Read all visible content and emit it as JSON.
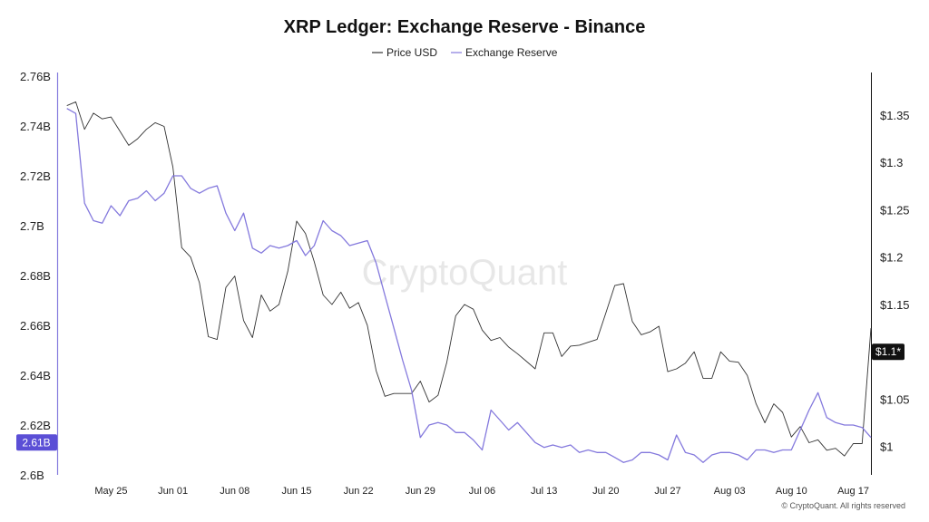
{
  "chart_data": {
    "type": "line",
    "title": "XRP Ledger: Exchange Reserve - Binance",
    "watermark": "CryptoQuant",
    "credit": "© CryptoQuant. All rights reserved",
    "x_tick_labels": [
      "May 25",
      "Jun 01",
      "Jun 08",
      "Jun 15",
      "Jun 22",
      "Jun 29",
      "Jul 06",
      "Jul 13",
      "Jul 20",
      "Jul 27",
      "Aug 03",
      "Aug 10",
      "Aug 17"
    ],
    "x_range": [
      "2023-05-19",
      "2023-08-19"
    ],
    "left_axis": {
      "ticks": [
        "2.6B",
        "2.62B",
        "2.64B",
        "2.66B",
        "2.68B",
        "2.7B",
        "2.72B",
        "2.74B",
        "2.76B"
      ],
      "tick_values": [
        2.6,
        2.62,
        2.64,
        2.66,
        2.68,
        2.7,
        2.72,
        2.74,
        2.76
      ],
      "range": [
        2.6,
        2.76
      ],
      "unit": "B",
      "current_label": "2.61B",
      "current_value": 2.613,
      "badge_color": "#5b4fd6"
    },
    "right_axis": {
      "ticks": [
        "$1",
        "$1.05",
        "$1.1",
        "$1.15",
        "$1.2",
        "$1.25",
        "$1.3",
        "$1.35"
      ],
      "tick_values": [
        1.0,
        1.05,
        1.1,
        1.15,
        1.2,
        1.25,
        1.3,
        1.35
      ],
      "range": [
        0.97,
        1.395
      ],
      "current_label": "$1.1*",
      "current_value": 1.1,
      "badge_color": "#111111"
    },
    "series": [
      {
        "name": "Price USD",
        "axis": "right",
        "color": "#333333",
        "x": [
          "2023-05-20",
          "2023-05-21",
          "2023-05-22",
          "2023-05-23",
          "2023-05-24",
          "2023-05-25",
          "2023-05-26",
          "2023-05-27",
          "2023-05-28",
          "2023-05-29",
          "2023-05-30",
          "2023-05-31",
          "2023-06-01",
          "2023-06-02",
          "2023-06-03",
          "2023-06-04",
          "2023-06-05",
          "2023-06-06",
          "2023-06-07",
          "2023-06-08",
          "2023-06-09",
          "2023-06-10",
          "2023-06-11",
          "2023-06-12",
          "2023-06-13",
          "2023-06-14",
          "2023-06-15",
          "2023-06-16",
          "2023-06-17",
          "2023-06-18",
          "2023-06-19",
          "2023-06-20",
          "2023-06-21",
          "2023-06-22",
          "2023-06-23",
          "2023-06-24",
          "2023-06-25",
          "2023-06-26",
          "2023-06-27",
          "2023-06-28",
          "2023-06-29",
          "2023-06-30",
          "2023-07-01",
          "2023-07-02",
          "2023-07-03",
          "2023-07-04",
          "2023-07-05",
          "2023-07-06",
          "2023-07-07",
          "2023-07-08",
          "2023-07-09",
          "2023-07-10",
          "2023-07-11",
          "2023-07-12",
          "2023-07-13",
          "2023-07-14",
          "2023-07-15",
          "2023-07-16",
          "2023-07-17",
          "2023-07-18",
          "2023-07-19",
          "2023-07-20",
          "2023-07-21",
          "2023-07-22",
          "2023-07-23",
          "2023-07-24",
          "2023-07-25",
          "2023-07-26",
          "2023-07-27",
          "2023-07-28",
          "2023-07-29",
          "2023-07-30",
          "2023-07-31",
          "2023-08-01",
          "2023-08-02",
          "2023-08-03",
          "2023-08-04",
          "2023-08-05",
          "2023-08-06",
          "2023-08-07",
          "2023-08-08",
          "2023-08-09",
          "2023-08-10",
          "2023-08-11",
          "2023-08-12",
          "2023-08-13",
          "2023-08-14",
          "2023-08-15",
          "2023-08-16",
          "2023-08-17",
          "2023-08-18",
          "2023-08-19"
        ],
        "values": [
          1.36,
          1.364,
          1.335,
          1.352,
          1.346,
          1.348,
          1.333,
          1.318,
          1.325,
          1.335,
          1.342,
          1.338,
          1.295,
          1.21,
          1.2,
          1.173,
          1.116,
          1.113,
          1.168,
          1.18,
          1.133,
          1.115,
          1.16,
          1.143,
          1.15,
          1.185,
          1.238,
          1.225,
          1.195,
          1.16,
          1.15,
          1.163,
          1.146,
          1.152,
          1.128,
          1.08,
          1.053,
          1.056,
          1.056,
          1.056,
          1.069,
          1.047,
          1.054,
          1.089,
          1.138,
          1.15,
          1.145,
          1.123,
          1.112,
          1.115,
          1.105,
          1.098,
          1.09,
          1.082,
          1.12,
          1.12,
          1.095,
          1.106,
          1.107,
          1.11,
          1.113,
          1.141,
          1.17,
          1.172,
          1.132,
          1.118,
          1.121,
          1.127,
          1.079,
          1.082,
          1.088,
          1.1,
          1.072,
          1.072,
          1.1,
          1.09,
          1.089,
          1.075,
          1.045,
          1.025,
          1.045,
          1.036,
          1.01,
          1.021,
          1.004,
          1.007,
          0.996,
          0.998,
          0.99,
          1.003,
          1.003,
          1.125
        ]
      },
      {
        "name": "Exchange Reserve",
        "axis": "left",
        "color": "#8479dd",
        "x": [
          "2023-05-20",
          "2023-05-21",
          "2023-05-22",
          "2023-05-23",
          "2023-05-24",
          "2023-05-25",
          "2023-05-26",
          "2023-05-27",
          "2023-05-28",
          "2023-05-29",
          "2023-05-30",
          "2023-05-31",
          "2023-06-01",
          "2023-06-02",
          "2023-06-03",
          "2023-06-04",
          "2023-06-05",
          "2023-06-06",
          "2023-06-07",
          "2023-06-08",
          "2023-06-09",
          "2023-06-10",
          "2023-06-11",
          "2023-06-12",
          "2023-06-13",
          "2023-06-14",
          "2023-06-15",
          "2023-06-16",
          "2023-06-17",
          "2023-06-18",
          "2023-06-19",
          "2023-06-20",
          "2023-06-21",
          "2023-06-22",
          "2023-06-23",
          "2023-06-24",
          "2023-06-25",
          "2023-06-26",
          "2023-06-27",
          "2023-06-28",
          "2023-06-29",
          "2023-06-30",
          "2023-07-01",
          "2023-07-02",
          "2023-07-03",
          "2023-07-04",
          "2023-07-05",
          "2023-07-06",
          "2023-07-07",
          "2023-07-08",
          "2023-07-09",
          "2023-07-10",
          "2023-07-11",
          "2023-07-12",
          "2023-07-13",
          "2023-07-14",
          "2023-07-15",
          "2023-07-16",
          "2023-07-17",
          "2023-07-18",
          "2023-07-19",
          "2023-07-20",
          "2023-07-21",
          "2023-07-22",
          "2023-07-23",
          "2023-07-24",
          "2023-07-25",
          "2023-07-26",
          "2023-07-27",
          "2023-07-28",
          "2023-07-29",
          "2023-07-30",
          "2023-07-31",
          "2023-08-01",
          "2023-08-02",
          "2023-08-03",
          "2023-08-04",
          "2023-08-05",
          "2023-08-06",
          "2023-08-07",
          "2023-08-08",
          "2023-08-09",
          "2023-08-10",
          "2023-08-11",
          "2023-08-12",
          "2023-08-13",
          "2023-08-14",
          "2023-08-15",
          "2023-08-16",
          "2023-08-17",
          "2023-08-18",
          "2023-08-19"
        ],
        "values": [
          2.747,
          2.745,
          2.709,
          2.702,
          2.701,
          2.708,
          2.704,
          2.71,
          2.711,
          2.714,
          2.71,
          2.713,
          2.72,
          2.72,
          2.715,
          2.713,
          2.715,
          2.716,
          2.705,
          2.698,
          2.705,
          2.691,
          2.689,
          2.692,
          2.691,
          2.692,
          2.694,
          2.688,
          2.692,
          2.702,
          2.698,
          2.696,
          2.692,
          2.693,
          2.694,
          2.685,
          2.672,
          2.659,
          2.646,
          2.634,
          2.615,
          2.62,
          2.621,
          2.62,
          2.617,
          2.617,
          2.614,
          2.61,
          2.626,
          2.622,
          2.618,
          2.621,
          2.617,
          2.613,
          2.611,
          2.612,
          2.611,
          2.612,
          2.609,
          2.61,
          2.609,
          2.609,
          2.607,
          2.605,
          2.606,
          2.609,
          2.609,
          2.608,
          2.606,
          2.616,
          2.609,
          2.608,
          2.605,
          2.608,
          2.609,
          2.609,
          2.608,
          2.606,
          2.61,
          2.61,
          2.609,
          2.61,
          2.61,
          2.618,
          2.626,
          2.633,
          2.623,
          2.621,
          2.62,
          2.62,
          2.619,
          2.615
        ]
      }
    ]
  }
}
